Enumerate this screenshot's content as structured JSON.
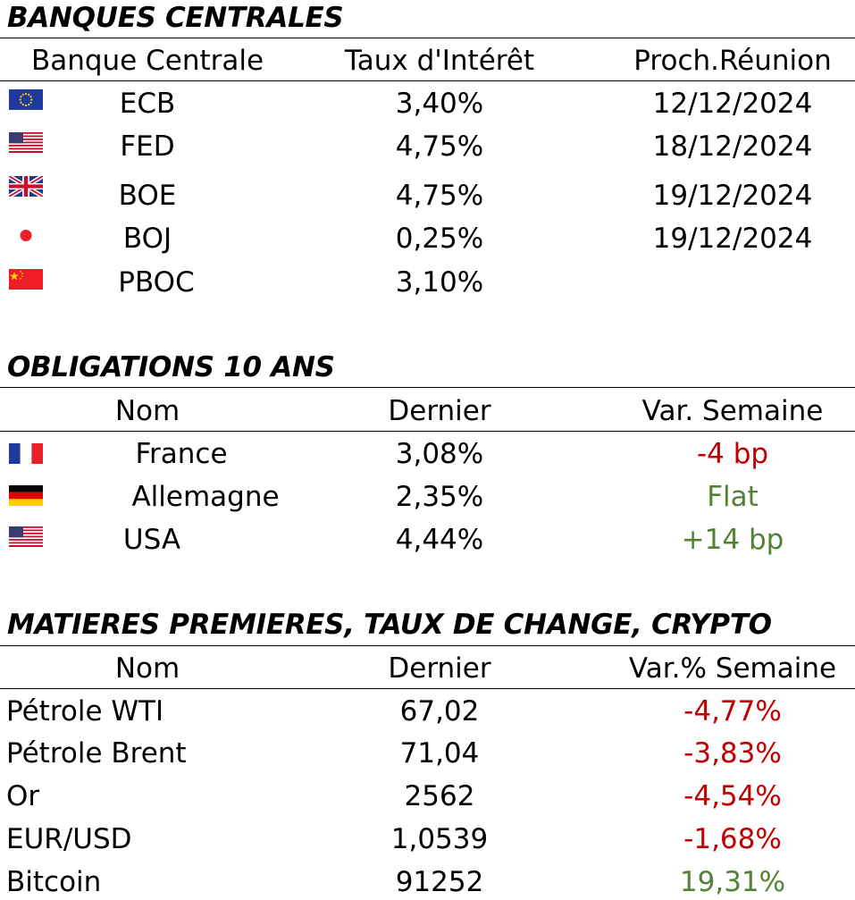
{
  "central_banks": {
    "title": "BANQUES CENTRALES",
    "headers": [
      "Banque Centrale",
      "Taux d'Intérêt",
      "Proch.Réunion"
    ],
    "rows": [
      {
        "flag": "eu-flag-icon",
        "name": "ECB",
        "rate": "3,40%",
        "next": "12/12/2024"
      },
      {
        "flag": "us-flag-icon",
        "name": "FED",
        "rate": "4,75%",
        "next": "18/12/2024"
      },
      {
        "flag": "uk-flag-icon",
        "name": "BOE",
        "rate": "4,75%",
        "next": "19/12/2024"
      },
      {
        "flag": "japan-flag-icon",
        "name": "BOJ",
        "rate": "0,25%",
        "next": "19/12/2024"
      },
      {
        "flag": "china-flag-icon",
        "name": "PBOC",
        "rate": "3,10%",
        "next": ""
      }
    ]
  },
  "bonds": {
    "title": "OBLIGATIONS 10 ANS",
    "headers": [
      "Nom",
      "Dernier",
      "Var. Semaine"
    ],
    "rows": [
      {
        "flag": "france-flag-icon",
        "name": "France",
        "last": "3,08%",
        "change": "-4 bp",
        "trend": "neg"
      },
      {
        "flag": "germany-flag-icon",
        "name": "Allemagne",
        "last": "2,35%",
        "change": "Flat",
        "trend": "pos"
      },
      {
        "flag": "us-flag-icon",
        "name": "USA",
        "last": "4,44%",
        "change": "+14 bp",
        "trend": "pos"
      }
    ]
  },
  "commodities": {
    "title": "MATIERES PREMIERES, TAUX DE CHANGE, CRYPTO",
    "headers": [
      "Nom",
      "Dernier",
      "Var.% Semaine"
    ],
    "rows": [
      {
        "name": "Pétrole WTI",
        "last": "67,02",
        "change": "-4,77%",
        "trend": "neg"
      },
      {
        "name": "Pétrole Brent",
        "last": "71,04",
        "change": "-3,83%",
        "trend": "neg"
      },
      {
        "name": "Or",
        "last": "2562",
        "change": "-4,54%",
        "trend": "neg"
      },
      {
        "name": "EUR/USD",
        "last": "1,0539",
        "change": "-1,68%",
        "trend": "neg"
      },
      {
        "name": "Bitcoin",
        "last": "91252",
        "change": "19,31%",
        "trend": "pos"
      }
    ]
  },
  "colors": {
    "negative": "#c00000",
    "positive": "#548235"
  }
}
